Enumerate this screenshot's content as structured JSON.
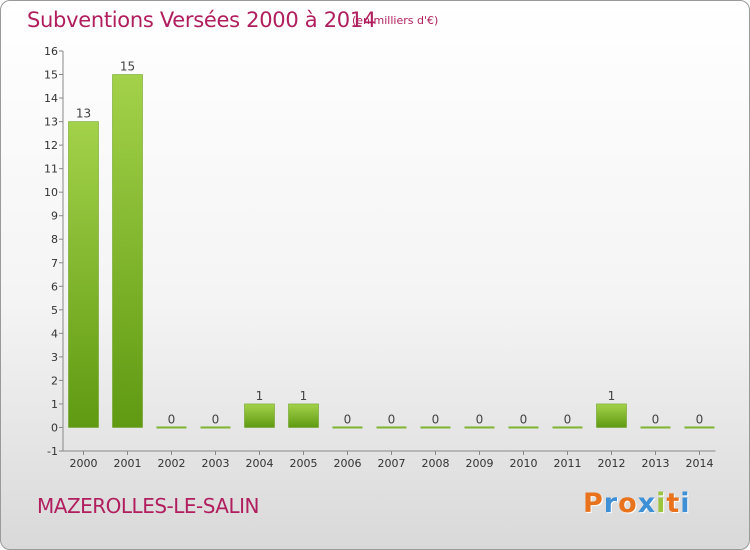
{
  "header": {
    "title": "Subventions Versées 2000 à 2014",
    "unit_note": "(en milliers d'€)"
  },
  "footer": {
    "commune": "MAZEROLLES-LE-SALIN",
    "logo_text": "Proxiti"
  },
  "colors": {
    "title": "#b01e5e",
    "bar_light": "#a3d24a",
    "bar_dark": "#5f9a12",
    "logo_letters": [
      "#e8731c",
      "#3d8fd6",
      "#e8731c",
      "#3d8fd6",
      "#9bc53d",
      "#e8731c",
      "#3d8fd6"
    ]
  },
  "chart_data": {
    "type": "bar",
    "title": "Subventions Versées 2000 à 2014",
    "subtitle": "(en milliers d'€)",
    "xlabel": "",
    "ylabel": "",
    "categories": [
      "2000",
      "2001",
      "2002",
      "2003",
      "2004",
      "2005",
      "2006",
      "2007",
      "2008",
      "2009",
      "2010",
      "2011",
      "2012",
      "2013",
      "2014"
    ],
    "values": [
      13,
      15,
      0,
      0,
      1,
      1,
      0,
      0,
      0,
      0,
      0,
      0,
      1,
      0,
      0
    ],
    "data_labels": [
      "13",
      "15",
      "0",
      "0",
      "1",
      "1",
      "0",
      "0",
      "0",
      "0",
      "0",
      "0",
      "1",
      "0",
      "0"
    ],
    "ylim": [
      -1,
      16
    ],
    "yticks": [
      -1,
      0,
      1,
      2,
      3,
      4,
      5,
      6,
      7,
      8,
      9,
      10,
      11,
      12,
      13,
      14,
      15,
      16
    ],
    "grid": false,
    "legend": "none"
  }
}
